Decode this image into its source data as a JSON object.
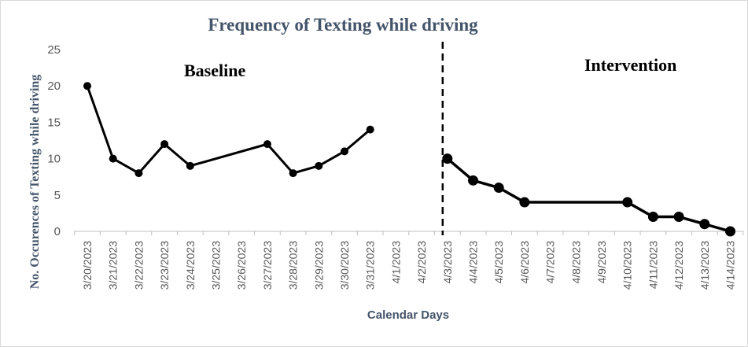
{
  "chart_data": {
    "type": "line",
    "title": "Frequency  of Texting while driving",
    "xlabel": "Calendar Days",
    "ylabel": "No.  Occurences of Texting while driving",
    "ylim": [
      0,
      25
    ],
    "y_ticks": [
      "0",
      "5",
      "10",
      "15",
      "20",
      "25"
    ],
    "grid": false,
    "categories": [
      "3/20/2023",
      "3/21/2023",
      "3/22/2023",
      "3/23/2023",
      "3/24/2023",
      "3/25/2023",
      "3/26/2023",
      "3/27/2023",
      "3/28/2023",
      "3/29/2023",
      "3/30/2023",
      "3/31/2023",
      "4/1/2023",
      "4/2/2023",
      "4/3/2023",
      "4/4/2023",
      "4/5/2023",
      "4/6/2023",
      "4/7/2023",
      "4/8/2023",
      "4/9/2023",
      "4/10/2023",
      "4/11/2023",
      "4/12/2023",
      "4/13/2023",
      "4/14/2023"
    ],
    "series": [
      {
        "points": [
          {
            "x": "3/20/2023",
            "y": 20
          },
          {
            "x": "3/21/2023",
            "y": 10
          },
          {
            "x": "3/22/2023",
            "y": 8
          },
          {
            "x": "3/23/2023",
            "y": 12
          },
          {
            "x": "3/24/2023",
            "y": 9
          },
          {
            "x": "3/27/2023",
            "y": 12
          },
          {
            "x": "3/28/2023",
            "y": 8
          },
          {
            "x": "3/29/2023",
            "y": 9
          },
          {
            "x": "3/30/2023",
            "y": 11
          },
          {
            "x": "3/31/2023",
            "y": 14
          }
        ]
      },
      {
        "points": [
          {
            "x": "4/3/2023",
            "y": 10
          },
          {
            "x": "4/4/2023",
            "y": 7
          },
          {
            "x": "4/5/2023",
            "y": 6
          },
          {
            "x": "4/6/2023",
            "y": 4
          },
          {
            "x": "4/10/2023",
            "y": 4
          },
          {
            "x": "4/11/2023",
            "y": 2
          },
          {
            "x": "4/12/2023",
            "y": 2
          },
          {
            "x": "4/13/2023",
            "y": 1
          },
          {
            "x": "4/14/2023",
            "y": 0
          }
        ]
      }
    ],
    "annotations": [
      {
        "text": "Baseline"
      },
      {
        "text": "Intervention"
      }
    ],
    "phase_change_line": {
      "x": "4/3/2023",
      "style": "dashed"
    },
    "colors": {
      "line": "#000000",
      "marker": "#000000",
      "title": "#44546a",
      "axis_text": "#595959",
      "axis_line": "#bfbfbf"
    }
  }
}
